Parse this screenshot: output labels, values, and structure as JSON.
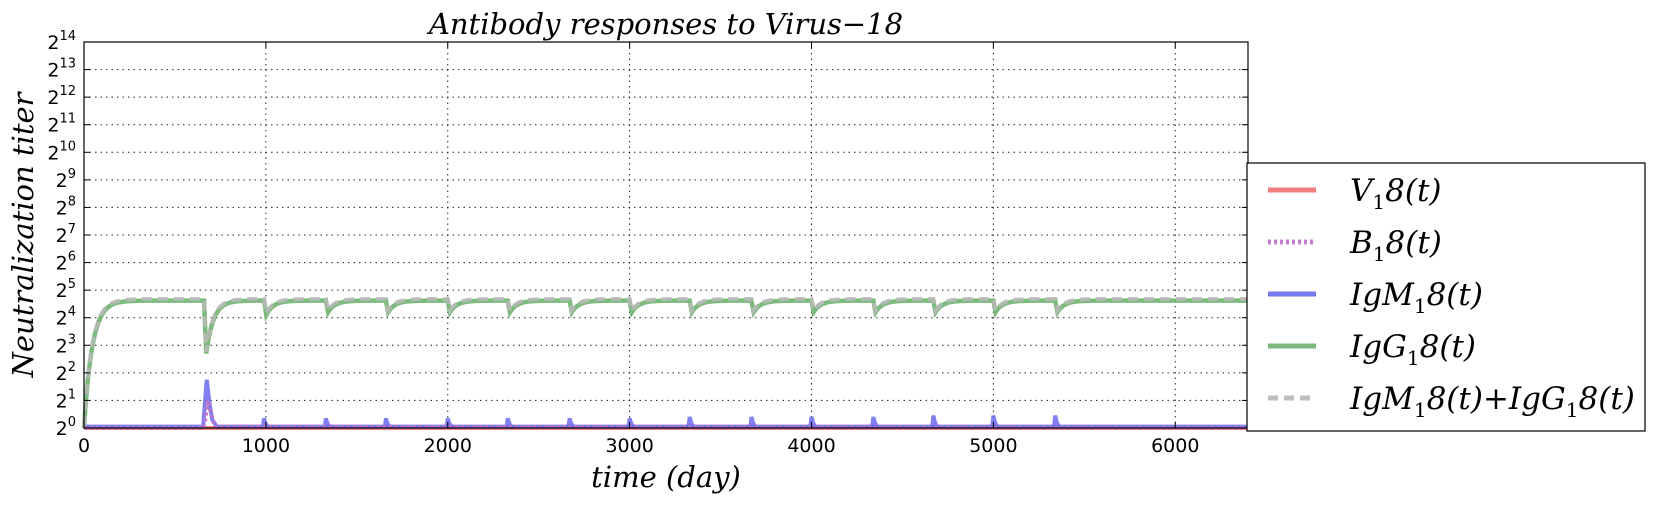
{
  "chart_data": {
    "type": "line",
    "title": "Antibody responses to Virus−18",
    "xlabel": "time (day)",
    "ylabel": "Neutralization  titer",
    "xlim": [
      0,
      6400
    ],
    "ylim_log2": [
      0,
      14
    ],
    "yscale": "log2",
    "x_ticks": [
      0,
      1000,
      2000,
      3000,
      4000,
      5000,
      6000
    ],
    "x_tick_labels": [
      "0",
      "1000",
      "2000",
      "3000",
      "4000",
      "5000",
      "6000"
    ],
    "y_tick_base": "2",
    "y_tick_exponents": [
      "0",
      "1",
      "2",
      "3",
      "4",
      "5",
      "6",
      "7",
      "8",
      "9",
      "10",
      "11",
      "12",
      "13",
      "14"
    ],
    "grid": true,
    "legend_position": "right, outside plot",
    "dose_times": [
      660,
      990,
      1330,
      1660,
      2000,
      2330,
      2670,
      3000,
      3330,
      3670,
      4000,
      4340,
      4670,
      5000,
      5340
    ],
    "series": [
      {
        "name": "V_18(t)",
        "legend_main": "V",
        "legend_sub": "1",
        "legend_rest": "8(t)",
        "color": "#f07070",
        "style": "solid",
        "x": [
          0,
          6400
        ],
        "y_log2": [
          0,
          0
        ]
      },
      {
        "name": "B_18(t)",
        "legend_main": "B",
        "legend_sub": "1",
        "legend_rest": "8(t)",
        "color": "#c070c8",
        "style": "dotted",
        "x": [
          0,
          655,
          665,
          680,
          700,
          720,
          6400
        ],
        "y_log2": [
          0,
          0,
          0.2,
          1.0,
          0.5,
          0.05,
          0
        ]
      },
      {
        "name": "IgM_18(t)",
        "legend_main": "IgM",
        "legend_sub": "1",
        "legend_rest": "8(t)",
        "color": "#6a6aee",
        "style": "solid",
        "x": [
          0,
          655,
          668,
          675,
          690,
          705,
          730,
          6400
        ],
        "y_log2": [
          0.05,
          0.05,
          1.2,
          1.75,
          0.9,
          0.3,
          0.05,
          0.05
        ],
        "dose_peaks_log2": [
          0.45,
          0.35,
          0.35,
          0.35,
          0.35,
          0.35,
          0.35,
          0.35,
          0.4,
          0.4,
          0.4,
          0.4,
          0.45,
          0.45,
          0.45
        ]
      },
      {
        "name": "IgG_18(t)",
        "legend_main": "IgG",
        "legend_sub": "1",
        "legend_rest": "8(t)",
        "color": "#6fb26f",
        "style": "solid",
        "plateau_log2": 4.62,
        "initial_rise_tau_days": 45,
        "dose_dips_log2": [
          2.7,
          4.1,
          4.2,
          4.2,
          4.2,
          4.2,
          4.2,
          4.2,
          4.2,
          4.2,
          4.2,
          4.2,
          4.2,
          4.2,
          4.2
        ],
        "recovery_tau_days": 40
      },
      {
        "name": "IgM_18(t)+IgG_18(t)",
        "legend_main": "IgM",
        "legend_sub": "1",
        "legend_mid": "8(t)+IgG",
        "legend_sub2": "1",
        "legend_rest": "8(t)",
        "color": "#b8b8b8",
        "style": "dashed",
        "offset_log2": 0.06
      }
    ]
  }
}
